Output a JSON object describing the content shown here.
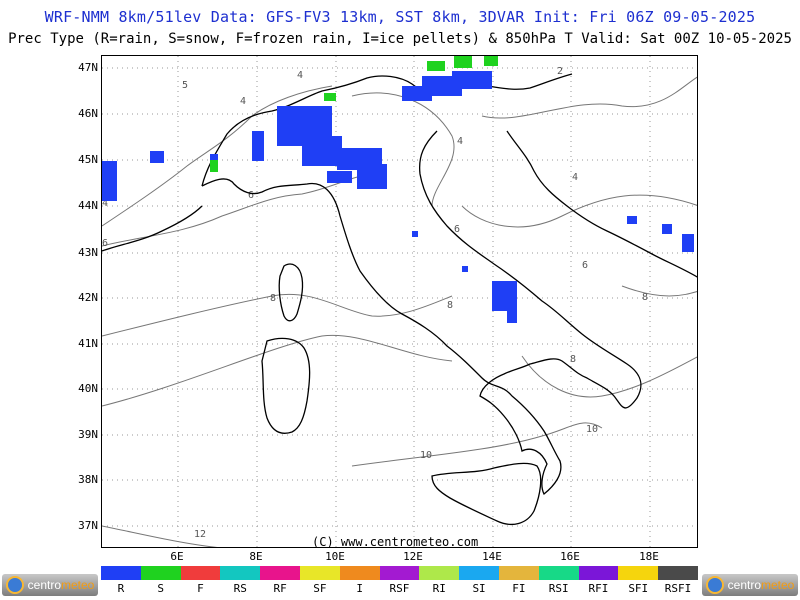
{
  "header": {
    "line1": "WRF-NMM 8km/51lev  Data: GFS-FV3 13km, SST 8km, 3DVAR  Init: Fri 06Z 09-05-2025",
    "line2": "Prec Type (R=rain, S=snow, F=frozen rain, I=ice pellets) & 850hPa T  Valid: Sat 00Z 10-05-2025"
  },
  "map": {
    "lat_labels": [
      "47N",
      "46N",
      "45N",
      "44N",
      "43N",
      "42N",
      "41N",
      "40N",
      "39N",
      "38N",
      "37N"
    ],
    "lon_labels": [
      "6E",
      "8E",
      "10E",
      "12E",
      "14E",
      "16E",
      "18E"
    ],
    "contour_labels": [
      "2",
      "4",
      "4",
      "4",
      "4",
      "4",
      "5",
      "6",
      "6",
      "6",
      "6",
      "8",
      "8",
      "8",
      "8",
      "10",
      "10",
      "12"
    ],
    "copyright": "(C) www.centrometeo.com",
    "precip_color": "#1f3ff5",
    "snow_color": "#1fd21f"
  },
  "legend": {
    "items": [
      {
        "label": "R",
        "color": "#1f3ff5"
      },
      {
        "label": "S",
        "color": "#1fd21f"
      },
      {
        "label": "F",
        "color": "#f03c3c"
      },
      {
        "label": "RS",
        "color": "#13c7c0"
      },
      {
        "label": "RF",
        "color": "#e8148c"
      },
      {
        "label": "SF",
        "color": "#e8e628"
      },
      {
        "label": "I",
        "color": "#ef8a1e"
      },
      {
        "label": "RSF",
        "color": "#a31ad1"
      },
      {
        "label": "RI",
        "color": "#aee84a"
      },
      {
        "label": "SI",
        "color": "#1aa8f0"
      },
      {
        "label": "FI",
        "color": "#e4b53c"
      },
      {
        "label": "RSI",
        "color": "#17d987"
      },
      {
        "label": "RFI",
        "color": "#7b16d8"
      },
      {
        "label": "SFI",
        "color": "#f5d50d"
      },
      {
        "label": "RSFI",
        "color": "#4a4a4a"
      }
    ]
  },
  "logos": {
    "left_text": "centro",
    "right_text": "centro",
    "suffix": "meteo"
  }
}
